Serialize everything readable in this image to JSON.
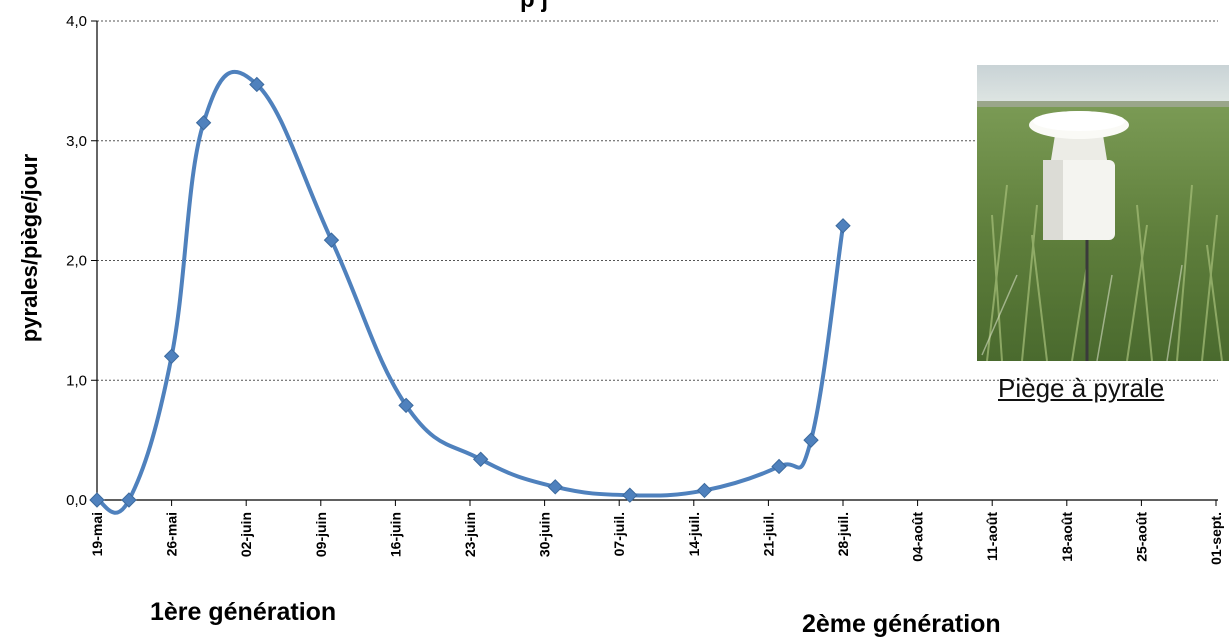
{
  "chart_data": {
    "type": "line",
    "title_fragment": "p                    j",
    "ylabel": "pyrales/piège/jour",
    "ylim": [
      0,
      4
    ],
    "y_ticks": [
      "0,0",
      "1,0",
      "2,0",
      "3,0",
      "4,0"
    ],
    "x_ticks": [
      "19-mai",
      "26-mai",
      "02-juin",
      "09-juin",
      "16-juin",
      "23-juin",
      "30-juin",
      "07-juil.",
      "14-juil.",
      "21-juil.",
      "28-juil.",
      "04-août",
      "11-août",
      "18-août",
      "25-août",
      "01-sept."
    ],
    "grid": "horizontal dotted",
    "series": [
      {
        "color": "#4f81bd",
        "marker": "diamond",
        "points": [
          {
            "x": "19-mai",
            "y": 0.0
          },
          {
            "x": "22-mai",
            "y": 0.0
          },
          {
            "x": "26-mai",
            "y": 1.2
          },
          {
            "x": "29-mai",
            "y": 3.15
          },
          {
            "x": "03-juin",
            "y": 3.47
          },
          {
            "x": "10-juin",
            "y": 2.17
          },
          {
            "x": "17-juin",
            "y": 0.79
          },
          {
            "x": "24-juin",
            "y": 0.34
          },
          {
            "x": "01-juil.",
            "y": 0.11
          },
          {
            "x": "08-juil.",
            "y": 0.04
          },
          {
            "x": "15-juil.",
            "y": 0.08
          },
          {
            "x": "22-juil.",
            "y": 0.28
          },
          {
            "x": "25-juil.",
            "y": 0.5
          },
          {
            "x": "28-juil.",
            "y": 2.29
          }
        ]
      }
    ]
  },
  "annotations": {
    "gen1": "1ère génération",
    "gen2": "2ème génération",
    "photo_caption": "Piège à pyrale"
  }
}
